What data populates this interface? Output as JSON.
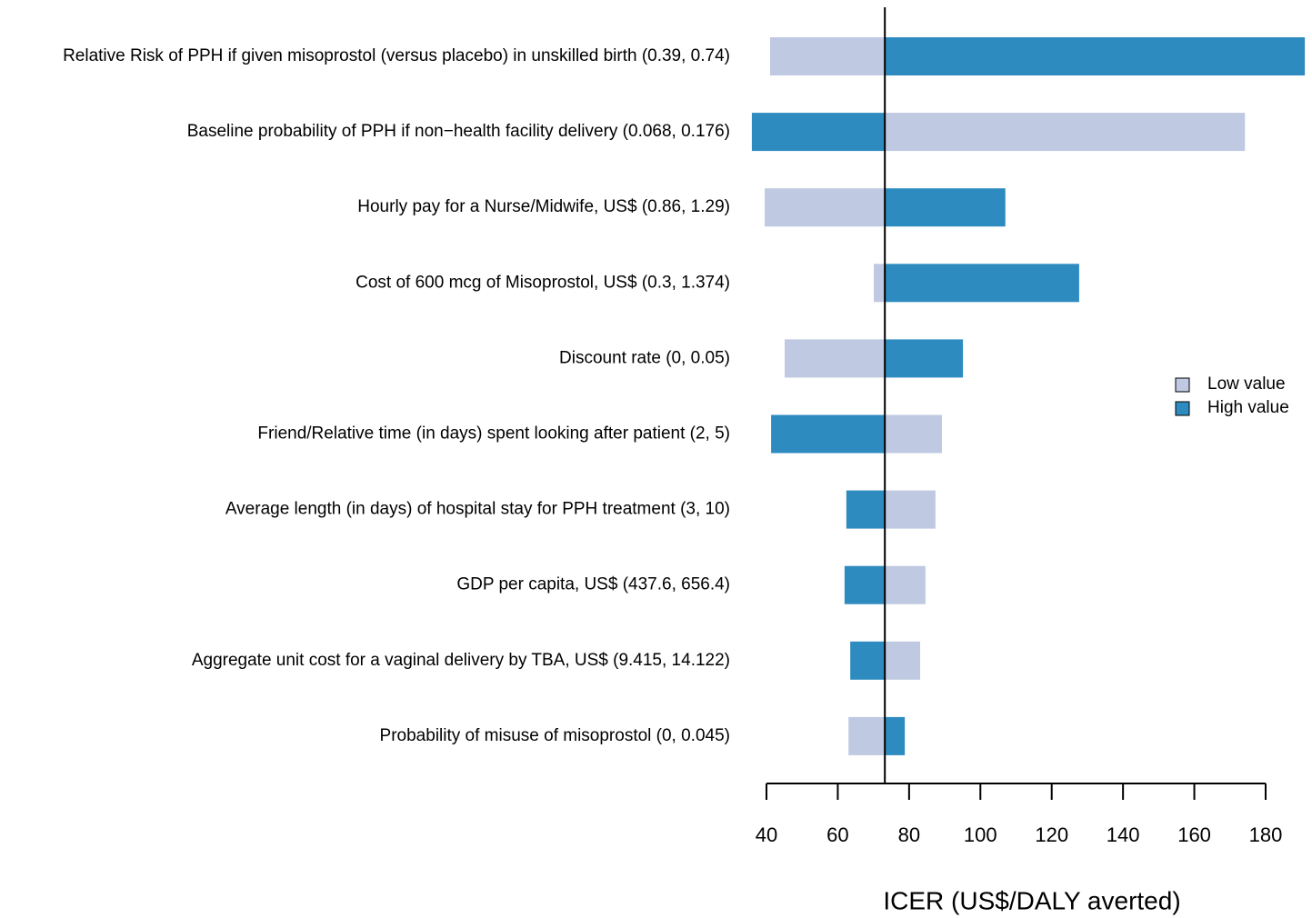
{
  "chart_data": {
    "type": "tornado",
    "categories": [
      "Relative Risk of PPH if given misoprostol (versus placebo) in unskilled birth (0.39, 0.74)",
      "Baseline probability of PPH if non−health facility delivery (0.068, 0.176)",
      "Hourly pay for a Nurse/Midwife, US$ (0.86, 1.29)",
      "Cost of 600 mcg of Misoprostol, US$ (0.3, 1.374)",
      "Discount rate (0, 0.05)",
      "Friend/Relative time (in days) spent looking after patient (2, 5)",
      "Average length (in days) of hospital stay for PPH treatment (3, 10)",
      "GDP per capita, US$ (437.6, 656.4)",
      "Aggregate unit cost for a vaginal delivery by TBA, US$ (9.415, 14.122)",
      "Probability of misuse of misoprostol (0, 0.045)"
    ],
    "series": [
      {
        "name": "Low value",
        "color": "#bfc9e2",
        "values": [
          41,
          174.2,
          39.5,
          70.1,
          45.1,
          89.2,
          87.4,
          84.6,
          83.1,
          63
        ]
      },
      {
        "name": "High value",
        "color": "#2e8bc0",
        "values": [
          191,
          35.9,
          107,
          127.7,
          95.1,
          41.3,
          62.4,
          61.9,
          63.5,
          78.8
        ]
      }
    ],
    "baseline": 73.2,
    "xlabel": "ICER (US$/DALY averted)",
    "xlim": [
      40,
      180
    ],
    "xticks": [
      40,
      60,
      80,
      100,
      120,
      140,
      160,
      180
    ],
    "legend": "right"
  }
}
